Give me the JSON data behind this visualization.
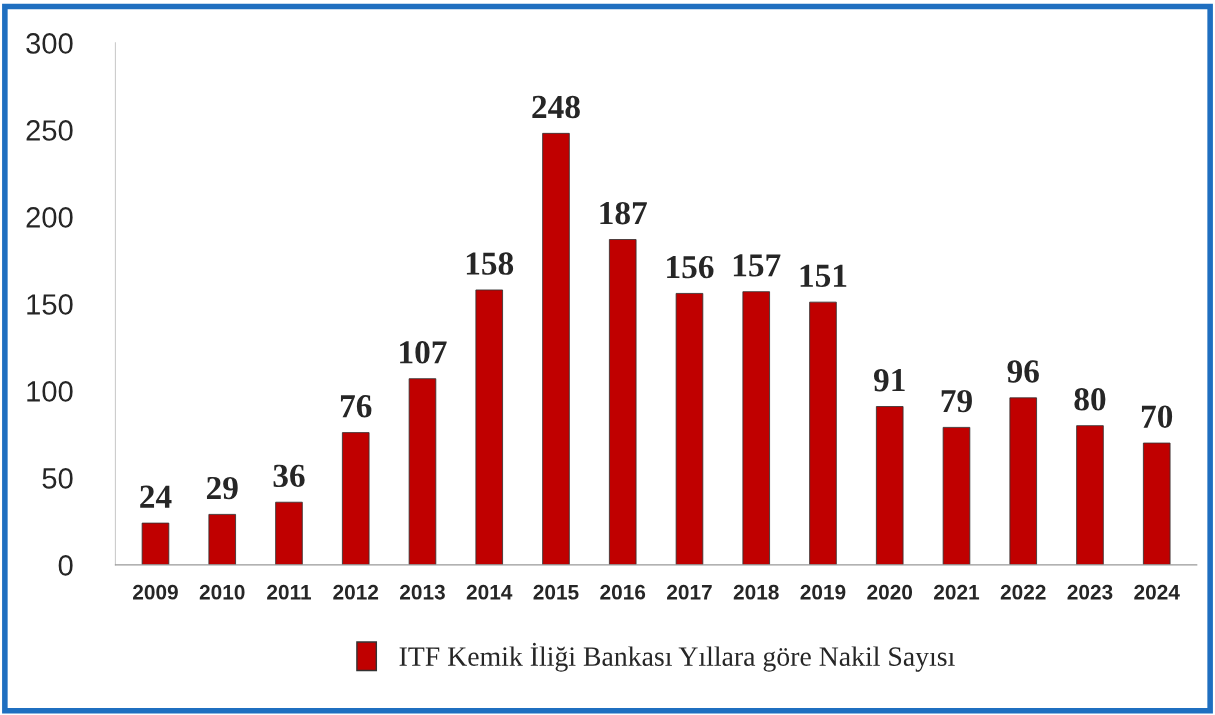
{
  "chart_data": {
    "type": "bar",
    "categories": [
      "2009",
      "2010",
      "2011",
      "2012",
      "2013",
      "2014",
      "2015",
      "2016",
      "2017",
      "2018",
      "2019",
      "2020",
      "2021",
      "2022",
      "2023",
      "2024"
    ],
    "series": [
      {
        "name": "ITF Kemik İliği Bankası Yıllara göre Nakil Sayısı",
        "color": "#c00000",
        "values": [
          24,
          29,
          36,
          76,
          107,
          158,
          248,
          187,
          156,
          157,
          151,
          91,
          79,
          96,
          80,
          70
        ]
      }
    ],
    "ylim": [
      0,
      300
    ],
    "yticks": [
      0,
      50,
      100,
      150,
      200,
      250,
      300
    ],
    "data_labels": true,
    "grid": false,
    "legend": "bottom"
  }
}
